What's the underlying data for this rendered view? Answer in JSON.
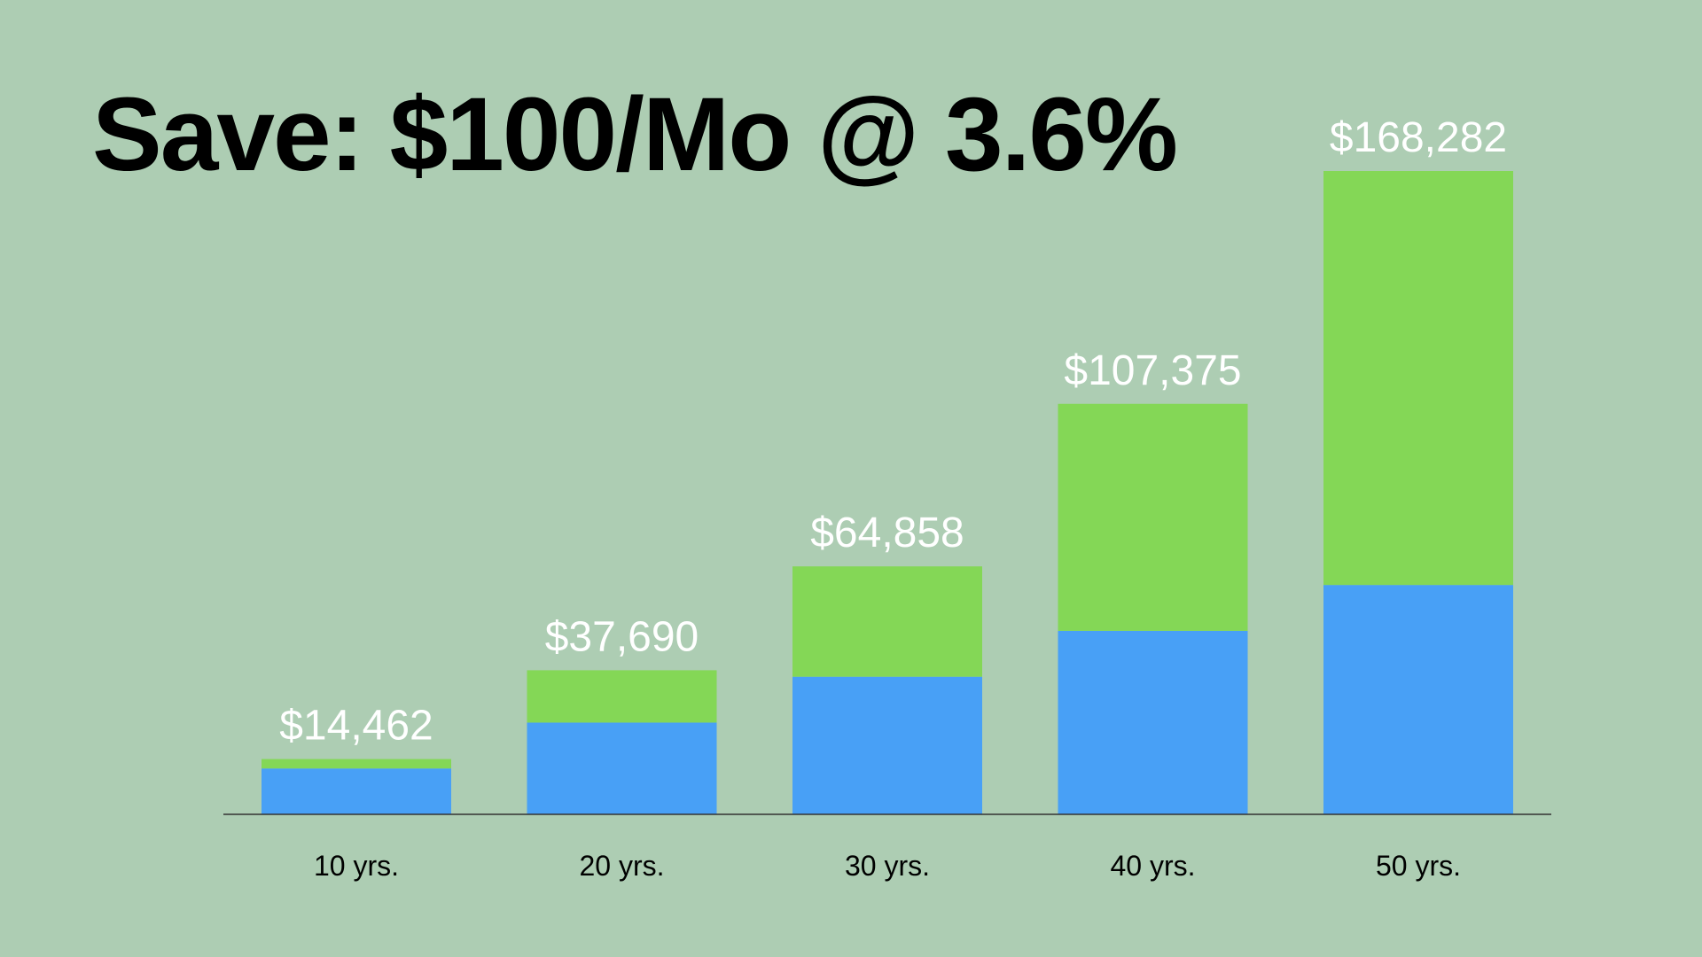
{
  "chart_data": {
    "type": "bar",
    "stacked": true,
    "title": "Save: $100/Mo @ 3.6%",
    "xlabel": "",
    "ylabel": "",
    "categories": [
      "10 yrs.",
      "20 yrs.",
      "30 yrs.",
      "40 yrs.",
      "50 yrs."
    ],
    "series": [
      {
        "values": [
          12000,
          24000,
          36000,
          48000,
          60000
        ],
        "color": "#48a0f6"
      },
      {
        "values": [
          2462,
          13690,
          28858,
          59375,
          108282
        ],
        "color": "#84d756"
      }
    ],
    "totals": [
      14462,
      37690,
      64858,
      107375,
      168282
    ],
    "total_labels": [
      "$14,462",
      "$37,690",
      "$64,858",
      "$107,375",
      "$168,282"
    ],
    "ylim": [
      0,
      168282
    ],
    "grid": false,
    "legend": "none",
    "colors": {
      "background": "#adcdb3",
      "value_label": "#ffffff",
      "axis": "#333333"
    }
  }
}
